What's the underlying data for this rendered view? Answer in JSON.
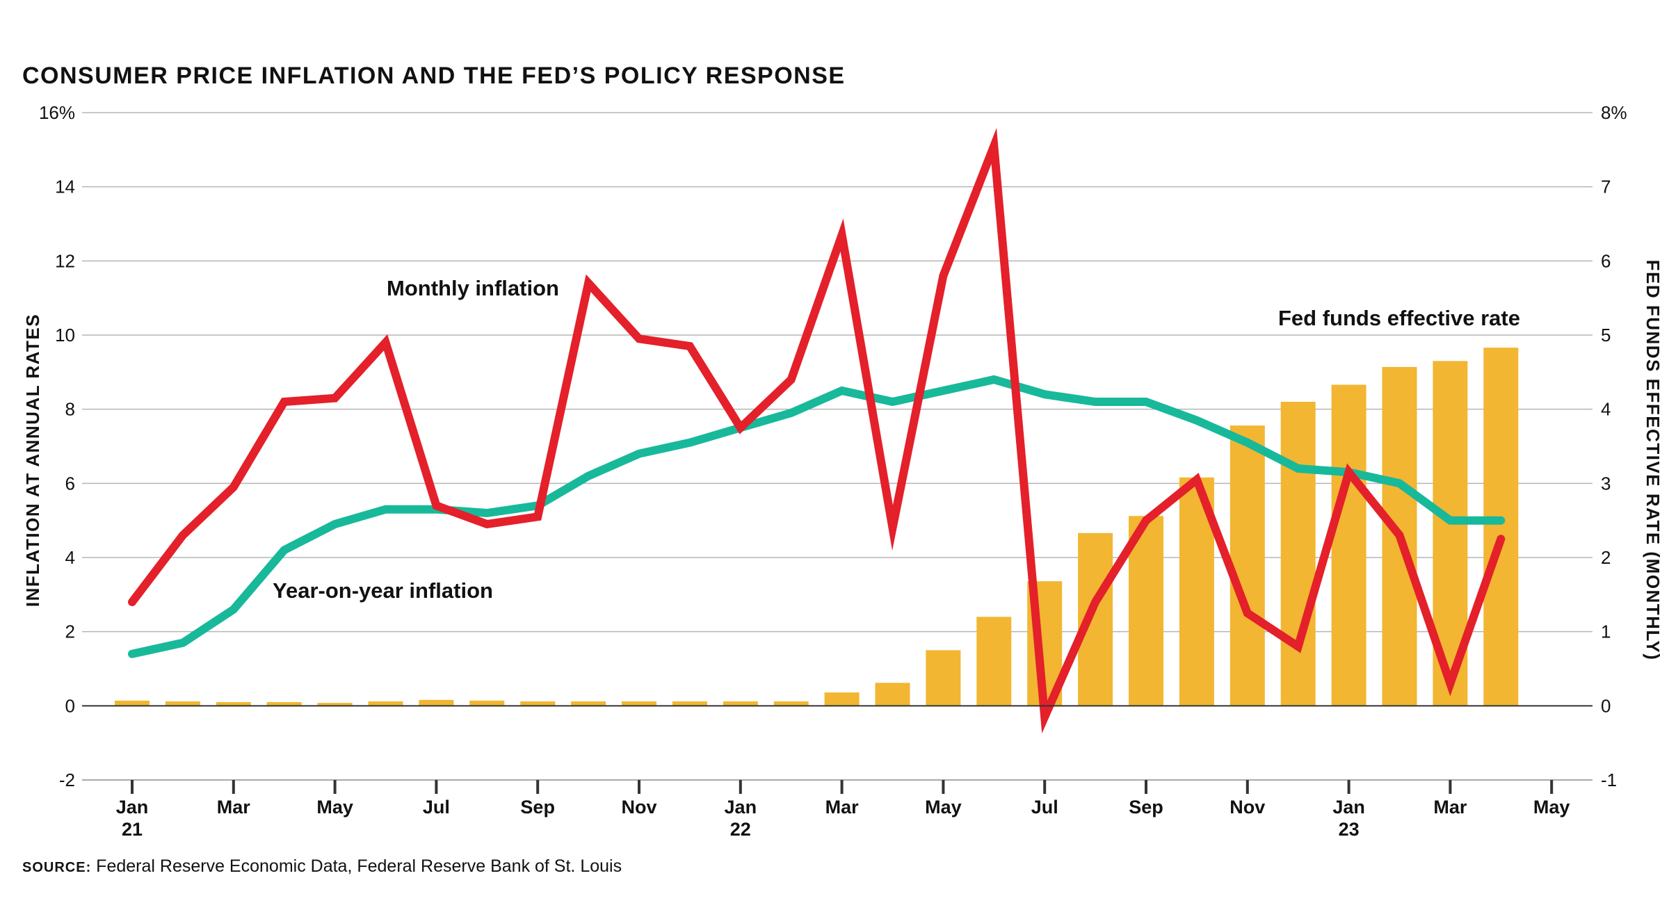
{
  "chart_data": {
    "type": "bar+line",
    "title": "CONSUMER PRICE INFLATION AND THE FED’S POLICY RESPONSE",
    "ylabel_left": "INFLATION AT ANNUAL RATES",
    "ylabel_right": "FED FUNDS EFFECTIVE RATE (MONTHLY)",
    "ylim_left": [
      -2,
      16
    ],
    "ylim_right": [
      -1,
      8
    ],
    "yticks_left": [
      "16%",
      "14",
      "12",
      "10",
      "8",
      "6",
      "4",
      "2",
      "0",
      "-2"
    ],
    "yticks_right": [
      "8%",
      "7",
      "6",
      "5",
      "4",
      "3",
      "2",
      "1",
      "0",
      "-1"
    ],
    "x_ticks": [
      {
        "label": "Jan",
        "sub": "21"
      },
      {
        "label": "Mar",
        "sub": ""
      },
      {
        "label": "May",
        "sub": ""
      },
      {
        "label": "Jul",
        "sub": ""
      },
      {
        "label": "Sep",
        "sub": ""
      },
      {
        "label": "Nov",
        "sub": ""
      },
      {
        "label": "Jan",
        "sub": "22"
      },
      {
        "label": "Mar",
        "sub": ""
      },
      {
        "label": "May",
        "sub": ""
      },
      {
        "label": "Jul",
        "sub": ""
      },
      {
        "label": "Sep",
        "sub": ""
      },
      {
        "label": "Nov",
        "sub": ""
      },
      {
        "label": "Jan",
        "sub": "23"
      },
      {
        "label": "Mar",
        "sub": ""
      },
      {
        "label": "May",
        "sub": ""
      }
    ],
    "months": [
      "Jan 2021",
      "Feb 2021",
      "Mar 2021",
      "Apr 2021",
      "May 2021",
      "Jun 2021",
      "Jul 2021",
      "Aug 2021",
      "Sep 2021",
      "Oct 2021",
      "Nov 2021",
      "Dec 2021",
      "Jan 2022",
      "Feb 2022",
      "Mar 2022",
      "Apr 2022",
      "May 2022",
      "Jun 2022",
      "Jul 2022",
      "Aug 2022",
      "Sep 2022",
      "Oct 2022",
      "Nov 2022",
      "Dec 2022",
      "Jan 2023",
      "Feb 2023",
      "Mar 2023",
      "Apr 2023"
    ],
    "series": [
      {
        "name": "Fed funds effective rate",
        "kind": "bar",
        "axis": "right",
        "color": "#F2B632",
        "values": [
          0.07,
          0.06,
          0.05,
          0.05,
          0.04,
          0.06,
          0.08,
          0.07,
          0.06,
          0.06,
          0.06,
          0.06,
          0.06,
          0.06,
          0.18,
          0.31,
          0.75,
          1.2,
          1.68,
          2.33,
          2.56,
          3.08,
          3.78,
          4.1,
          4.33,
          4.57,
          4.65,
          4.83
        ]
      },
      {
        "name": "Monthly inflation",
        "kind": "line",
        "axis": "left",
        "color": "#E4202A",
        "values": [
          2.8,
          4.6,
          5.9,
          8.2,
          8.3,
          9.8,
          5.4,
          4.9,
          5.1,
          11.4,
          9.9,
          9.7,
          7.5,
          8.8,
          12.7,
          4.8,
          11.6,
          15.1,
          -0.3,
          2.8,
          5.0,
          6.1,
          2.5,
          1.6,
          6.3,
          4.6,
          0.6,
          4.5
        ]
      },
      {
        "name": "Year-on-year inflation",
        "kind": "line",
        "axis": "left",
        "color": "#17B99A",
        "values": [
          1.4,
          1.7,
          2.6,
          4.2,
          4.9,
          5.3,
          5.3,
          5.2,
          5.4,
          6.2,
          6.8,
          7.1,
          7.5,
          7.9,
          8.5,
          8.2,
          8.5,
          8.8,
          8.4,
          8.2,
          8.2,
          7.7,
          7.1,
          6.4,
          6.3,
          6.0,
          5.0,
          5.0
        ]
      }
    ],
    "annotations": [
      "Monthly inflation",
      "Year-on-year inflation",
      "Fed funds effective rate"
    ],
    "legend": "none",
    "grid": true
  },
  "source": {
    "label": "SOURCE:",
    "text": " Federal Reserve Economic Data, Federal Reserve Bank of St. Louis"
  },
  "colors": {
    "bar": "#F2B632",
    "monthly": "#E4202A",
    "yoy": "#17B99A",
    "grid": "#B5B5B5",
    "axis": "#333333"
  }
}
